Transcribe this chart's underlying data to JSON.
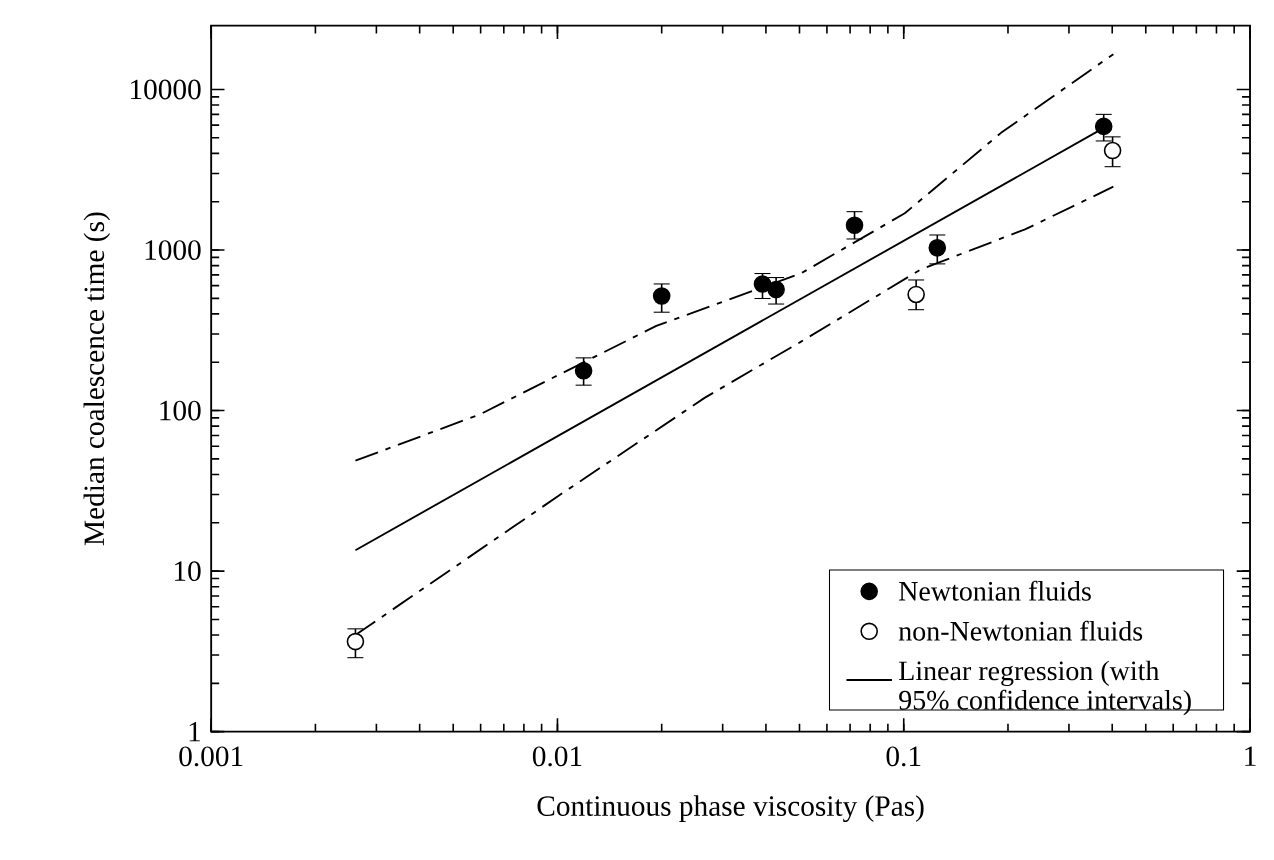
{
  "chart_data": {
    "type": "scatter",
    "xlabel": "Continuous phase viscosity (Pas)",
    "ylabel": "Median coalescence time (s)",
    "log": "xy",
    "xlim": [
      0.001,
      1
    ],
    "ylim": [
      1,
      25000
    ],
    "xticks": [
      0.001,
      0.01,
      0.1,
      1
    ],
    "yticks": [
      1,
      10,
      100,
      1000,
      10000
    ],
    "grid": false,
    "legend": "bottom right",
    "series": [
      {
        "name": "Newtonian fluids",
        "marker": "circle",
        "color": "#000000",
        "x": [
          0.0119,
          0.02,
          0.0391,
          0.0428,
          0.0721,
          0.125,
          0.378
        ],
        "values": [
          177,
          517,
          615,
          567,
          1426,
          1032,
          5890
        ],
        "errors": [
          [
            144,
            213
          ],
          [
            410,
            615
          ],
          [
            499,
            714
          ],
          [
            461,
            674
          ],
          [
            1172,
            1734
          ],
          [
            820,
            1241
          ],
          [
            4780,
            7000
          ]
        ]
      },
      {
        "name": "non-Newtonian fluids",
        "marker": "circle",
        "color": "#ffffff",
        "x": [
          0.00261,
          0.1086,
          0.401
        ],
        "values": [
          3.64,
          529,
          4165
        ],
        "errors": [
          [
            2.89,
            4.37
          ],
          [
            425,
            651
          ],
          [
            3305,
            5070
          ]
        ]
      },
      {
        "name": "Linear regression (with 95% confidence intervals)",
        "type": "line",
        "color": "#000000",
        "line_style": "solid",
        "marker": "none",
        "x": [
          0.00261,
          0.392
        ],
        "values": [
          13.5,
          6020
        ]
      },
      {
        "type": "line",
        "color": "#000000",
        "line_style": "dashed",
        "marker": "none",
        "x": [
          0.00261,
          0.00599,
          0.0193,
          0.0504,
          0.1007,
          0.191,
          0.403
        ],
        "values": [
          48.7,
          95,
          337,
          714,
          1694,
          5370,
          16600
        ]
      },
      {
        "type": "line",
        "color": "#000000",
        "line_style": "dashed",
        "marker": "none",
        "x": [
          0.00261,
          0.0102,
          0.0266,
          0.0504,
          0.112,
          0.224,
          0.403
        ],
        "values": [
          4.0,
          30,
          120,
          268,
          757,
          1345,
          2480
        ]
      }
    ]
  }
}
